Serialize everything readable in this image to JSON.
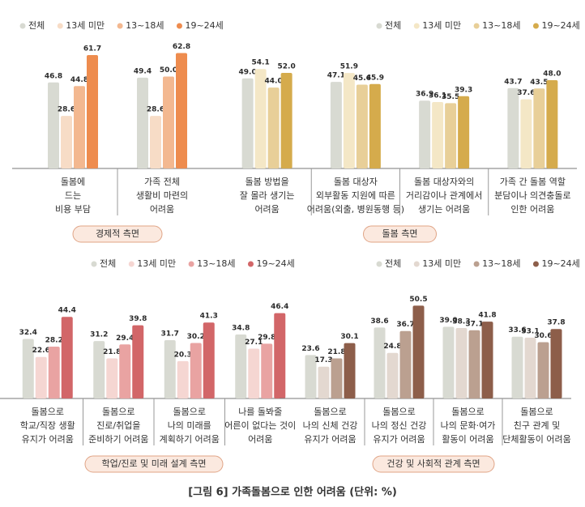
{
  "chart_data": [
    {
      "type": "bar",
      "section_label": "경제적 측면",
      "categories": [
        [
          "돌봄에",
          "드는",
          "비용 부담"
        ],
        [
          "가족 전체",
          "생활비 마련의",
          "어려움"
        ]
      ],
      "series": [
        {
          "name": "전체",
          "color": "#d8dad2",
          "values": [
            46.8,
            49.4
          ],
          "value_labels": [
            "46.8",
            "49.4"
          ]
        },
        {
          "name": "13세 미만",
          "color": "#f7dcc6",
          "values": [
            28.6,
            28.6
          ],
          "value_labels": [
            "28.6",
            "28.6"
          ]
        },
        {
          "name": "13~18세",
          "color": "#f3b890",
          "values": [
            44.8,
            50.0
          ],
          "value_labels": [
            "44.8",
            "50.0"
          ]
        },
        {
          "name": "19~24세",
          "color": "#ee8c4e",
          "values": [
            61.7,
            62.8
          ],
          "value_labels": [
            "61.7",
            "62.8"
          ]
        }
      ]
    },
    {
      "type": "bar",
      "section_label": "돌봄 측면",
      "categories": [
        [
          "돌봄 방법을",
          "잘 몰라 생기는",
          "어려움"
        ],
        [
          "돌봄 대상자",
          "외부활동 지원에 따른",
          "어려움(외출, 병원동행 등)"
        ],
        [
          "돌봄 대상자와의",
          "거리감이나 관계에서",
          "생기는 어려움"
        ],
        [
          "가족 간 돌봄 역할",
          "분담이나 의견충돌로",
          "인한 어려움"
        ]
      ],
      "series": [
        {
          "name": "전체",
          "color": "#d8dad2",
          "values": [
            49.0,
            47.1,
            36.9,
            43.7
          ],
          "value_labels": [
            "49.0",
            "47.1",
            "36.9",
            "43.7"
          ]
        },
        {
          "name": "13세 미만",
          "color": "#f4e7c6",
          "values": [
            54.1,
            51.9,
            36.1,
            37.6
          ],
          "value_labels": [
            "54.1",
            "51.9",
            "36.1",
            "37.6"
          ]
        },
        {
          "name": "13~18세",
          "color": "#e8cf98",
          "values": [
            44.0,
            45.6,
            35.5,
            43.5
          ],
          "value_labels": [
            "44.0",
            "45.6",
            "35.5",
            "43.5"
          ]
        },
        {
          "name": "19~24세",
          "color": "#d5ab4c",
          "values": [
            52.0,
            45.9,
            39.3,
            48.0
          ],
          "value_labels": [
            "52.0",
            "45.9",
            "39.3",
            "48.0"
          ]
        }
      ]
    },
    {
      "type": "bar",
      "section_label": "학업/진로 및 미래 설계 측면",
      "categories": [
        [
          "돌봄으로",
          "학교/직장 생활",
          "유지가 어려움"
        ],
        [
          "돌봄으로",
          "진로/취업을",
          "준비하기 어려움"
        ],
        [
          "돌봄으로",
          "나의 미래를",
          "계획하기 어려움"
        ],
        [
          "나를 돌봐줄",
          "어른이 없다는 것이",
          "어려움"
        ]
      ],
      "series": [
        {
          "name": "전체",
          "color": "#d8dad2",
          "values": [
            32.4,
            31.2,
            31.7,
            34.8
          ],
          "value_labels": [
            "32.4",
            "31.2",
            "31.7",
            "34.8"
          ]
        },
        {
          "name": "13세 미만",
          "color": "#f5d6d2",
          "values": [
            22.6,
            21.8,
            20.3,
            27.1
          ],
          "value_labels": [
            "22.6",
            "21.8",
            "20.3",
            "27.1"
          ]
        },
        {
          "name": "13~18세",
          "color": "#e9a3a2",
          "values": [
            28.2,
            29.4,
            30.2,
            29.8
          ],
          "value_labels": [
            "28.2",
            "29.4",
            "30.2",
            "29.8"
          ]
        },
        {
          "name": "19~24세",
          "color": "#d26668",
          "values": [
            44.4,
            39.8,
            41.3,
            46.4
          ],
          "value_labels": [
            "44.4",
            "39.8",
            "41.3",
            "46.4"
          ]
        }
      ]
    },
    {
      "type": "bar",
      "section_label": "건강 및 사회적 관계 측면",
      "categories": [
        [
          "돌봄으로",
          "나의 신체 건강",
          "유지가 어려움"
        ],
        [
          "돌봄으로",
          "나의 정신 건강",
          "유지가 어려움"
        ],
        [
          "돌봄으로",
          "나의 문화·여가",
          "활동이 어려움"
        ],
        [
          "돌봄으로",
          "친구 관계 및",
          "단체활동이 어려움"
        ]
      ],
      "series": [
        {
          "name": "전체",
          "color": "#d8dad2",
          "values": [
            23.6,
            38.6,
            39.0,
            33.6
          ],
          "value_labels": [
            "23.6",
            "38.6",
            "39.0",
            "33.6"
          ]
        },
        {
          "name": "13세 미만",
          "color": "#e3d8d0",
          "values": [
            17.3,
            24.8,
            38.3,
            33.1
          ],
          "value_labels": [
            "17.3",
            "24.8",
            "38.3",
            "33.1"
          ]
        },
        {
          "name": "13~18세",
          "color": "#bba090",
          "values": [
            21.8,
            36.7,
            37.1,
            30.6
          ],
          "value_labels": [
            "21.8",
            "36.7",
            "37.1",
            "30.6"
          ]
        },
        {
          "name": "19~24세",
          "color": "#8d5e4a",
          "values": [
            30.1,
            50.5,
            41.8,
            37.8
          ],
          "value_labels": [
            "30.1",
            "50.5",
            "41.8",
            "37.8"
          ]
        }
      ]
    }
  ],
  "caption": "[그림 6] 가족돌봄으로 인한 어려움 (단위: %)"
}
